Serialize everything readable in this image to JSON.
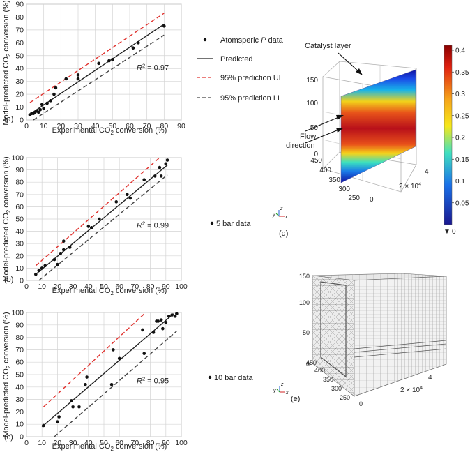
{
  "chart_data": [
    {
      "type": "scatter",
      "panel_label": "(a)",
      "xlabel": "Experimental CO₂ conversion (%)",
      "ylabel": "Model-predicted CO₂ conversion (%)",
      "xlim": [
        0,
        90
      ],
      "ylim": [
        0,
        90
      ],
      "xticks": [
        0,
        10,
        20,
        30,
        40,
        50,
        60,
        70,
        80,
        90
      ],
      "yticks": [
        0,
        10,
        20,
        30,
        40,
        50,
        60,
        70,
        80,
        90
      ],
      "grid": true,
      "r2_label": "R² = 0.97",
      "r2_text": {
        "prefix": "R",
        "sup": "2",
        "suffix": " = 0.97"
      },
      "points": [
        [
          2,
          4
        ],
        [
          3,
          5
        ],
        [
          4,
          5
        ],
        [
          5,
          6
        ],
        [
          6,
          7
        ],
        [
          7,
          6
        ],
        [
          8,
          8
        ],
        [
          9,
          12
        ],
        [
          10,
          9
        ],
        [
          12,
          13
        ],
        [
          14,
          15
        ],
        [
          16,
          20
        ],
        [
          17,
          25
        ],
        [
          23,
          32
        ],
        [
          30,
          35
        ],
        [
          30,
          32
        ],
        [
          42,
          44
        ],
        [
          48,
          46
        ],
        [
          50,
          47
        ],
        [
          62,
          56
        ],
        [
          65,
          60
        ],
        [
          80,
          73
        ]
      ],
      "predicted": {
        "x": [
          2,
          80
        ],
        "y": [
          4.5,
          74.5
        ]
      },
      "ul": {
        "x": [
          2,
          80
        ],
        "y": [
          13.5,
          83
        ]
      },
      "ll": {
        "x": [
          4,
          80
        ],
        "y": [
          0,
          66
        ]
      }
    },
    {
      "type": "scatter",
      "panel_label": "(b)",
      "xlabel": "Experimental CO₂ conversion (%)",
      "ylabel": "Model-predicted CO₂ conversion (%)",
      "xlim": [
        0,
        100
      ],
      "ylim": [
        0,
        100
      ],
      "xticks": [
        0,
        10,
        20,
        30,
        40,
        50,
        60,
        70,
        80,
        90,
        100
      ],
      "yticks": [
        0,
        10,
        20,
        30,
        40,
        50,
        60,
        70,
        80,
        90,
        100
      ],
      "grid": true,
      "r2_label": "R² = 0.99",
      "r2_text": {
        "prefix": "R",
        "sup": "2",
        "suffix": " = 0.99"
      },
      "points": [
        [
          6,
          5
        ],
        [
          8,
          8
        ],
        [
          10,
          10
        ],
        [
          12,
          12
        ],
        [
          18,
          17
        ],
        [
          20,
          13
        ],
        [
          22,
          22
        ],
        [
          24,
          25
        ],
        [
          24,
          32
        ],
        [
          28,
          27
        ],
        [
          40,
          44
        ],
        [
          42,
          43
        ],
        [
          47,
          50
        ],
        [
          58,
          64
        ],
        [
          65,
          70
        ],
        [
          67,
          67
        ],
        [
          76,
          82
        ],
        [
          83,
          85
        ],
        [
          86,
          92
        ],
        [
          87,
          85
        ],
        [
          90,
          95
        ],
        [
          91,
          98
        ]
      ],
      "predicted": {
        "x": [
          6,
          91
        ],
        "y": [
          5,
          94
        ]
      },
      "ul": {
        "x": [
          6,
          86
        ],
        "y": [
          12,
          100
        ]
      },
      "ll": {
        "x": [
          8,
          91
        ],
        "y": [
          0,
          86
        ]
      }
    },
    {
      "type": "scatter",
      "panel_label": "(c)",
      "xlabel": "Experimental CO₂ conversion (%)",
      "ylabel": "Model-predicted CO₂ conversion (%)",
      "xlim": [
        0,
        100
      ],
      "ylim": [
        0,
        100
      ],
      "xticks": [
        0,
        10,
        20,
        30,
        40,
        50,
        60,
        70,
        80,
        90,
        100
      ],
      "yticks": [
        0,
        10,
        20,
        30,
        40,
        50,
        60,
        70,
        80,
        90,
        100
      ],
      "grid": true,
      "r2_label": "R² = 0.95",
      "r2_text": {
        "prefix": "R",
        "sup": "2",
        "suffix": " = 0.95"
      },
      "points": [
        [
          11,
          9
        ],
        [
          20,
          12
        ],
        [
          21,
          16
        ],
        [
          29,
          29
        ],
        [
          30,
          24
        ],
        [
          34,
          24
        ],
        [
          38,
          42
        ],
        [
          39,
          48
        ],
        [
          55,
          42
        ],
        [
          56,
          70
        ],
        [
          60,
          63
        ],
        [
          75,
          86
        ],
        [
          76,
          67
        ],
        [
          82,
          84
        ],
        [
          84,
          93
        ],
        [
          85,
          93
        ],
        [
          87,
          94
        ],
        [
          88,
          87
        ],
        [
          90,
          92
        ],
        [
          92,
          97
        ],
        [
          94,
          98
        ],
        [
          96,
          97
        ],
        [
          97,
          99
        ]
      ],
      "predicted": {
        "x": [
          10,
          95
        ],
        "y": [
          8,
          99
        ]
      },
      "ul": {
        "x": [
          11,
          77
        ],
        "y": [
          24,
          100
        ]
      },
      "ll": {
        "x": [
          18,
          97
        ],
        "y": [
          0,
          85
        ]
      }
    },
    {
      "type": "heatmap",
      "panel_label": "(d)",
      "annotations": {
        "catalyst": "Catalyst layer",
        "flow": "Flow\ndirection"
      },
      "z_ticks": [
        "0",
        "50",
        "100",
        "150"
      ],
      "y_ticks": [
        "450",
        "400",
        "350",
        "300",
        "250"
      ],
      "x_ticks": [
        "0",
        "2",
        "4"
      ],
      "x_exponent": {
        "base": "2 × 10",
        "exp": "4"
      },
      "colorbar_ticks": [
        0.4,
        0.35,
        0.3,
        0.25,
        0.2,
        0.15,
        0.1,
        0.05
      ],
      "colorbar_ticks_text": [
        "0.4",
        "0.35",
        "0.3",
        "0.25",
        "0.2",
        "0.15",
        "0.1",
        "0.05"
      ],
      "colorbar_min": "0",
      "colorbar_max_marker": "▲ 0.4",
      "colorbar_min_marker": "▼ 0",
      "axis_letters": {
        "x": "x",
        "y": "y",
        "z": "z"
      }
    },
    {
      "type": "mesh",
      "panel_label": "(e)",
      "z_ticks": [
        "0",
        "50",
        "100",
        "150"
      ],
      "y_ticks": [
        "450",
        "400",
        "350",
        "300",
        "250"
      ],
      "x_ticks": [
        "0",
        "2",
        "4"
      ],
      "x_exponent": {
        "base": "2 × 10",
        "exp": "4"
      },
      "axis_letters": {
        "x": "x",
        "y": "y",
        "z": "z"
      }
    }
  ],
  "legend": {
    "points": "Atomsperic P data",
    "points_parts": {
      "pre": "Atomsperic ",
      "italic": "P",
      "post": " data"
    },
    "predicted": "Predicted",
    "ul": "95% prediction UL",
    "ll": "95% prediction LL"
  },
  "legend_b": "5 bar data",
  "legend_c": "10 bar data",
  "colors": {
    "points": "#111111",
    "predicted": "#222222",
    "ul": "#e0322e",
    "ll": "#444444",
    "grid": "#d4d4d4"
  }
}
